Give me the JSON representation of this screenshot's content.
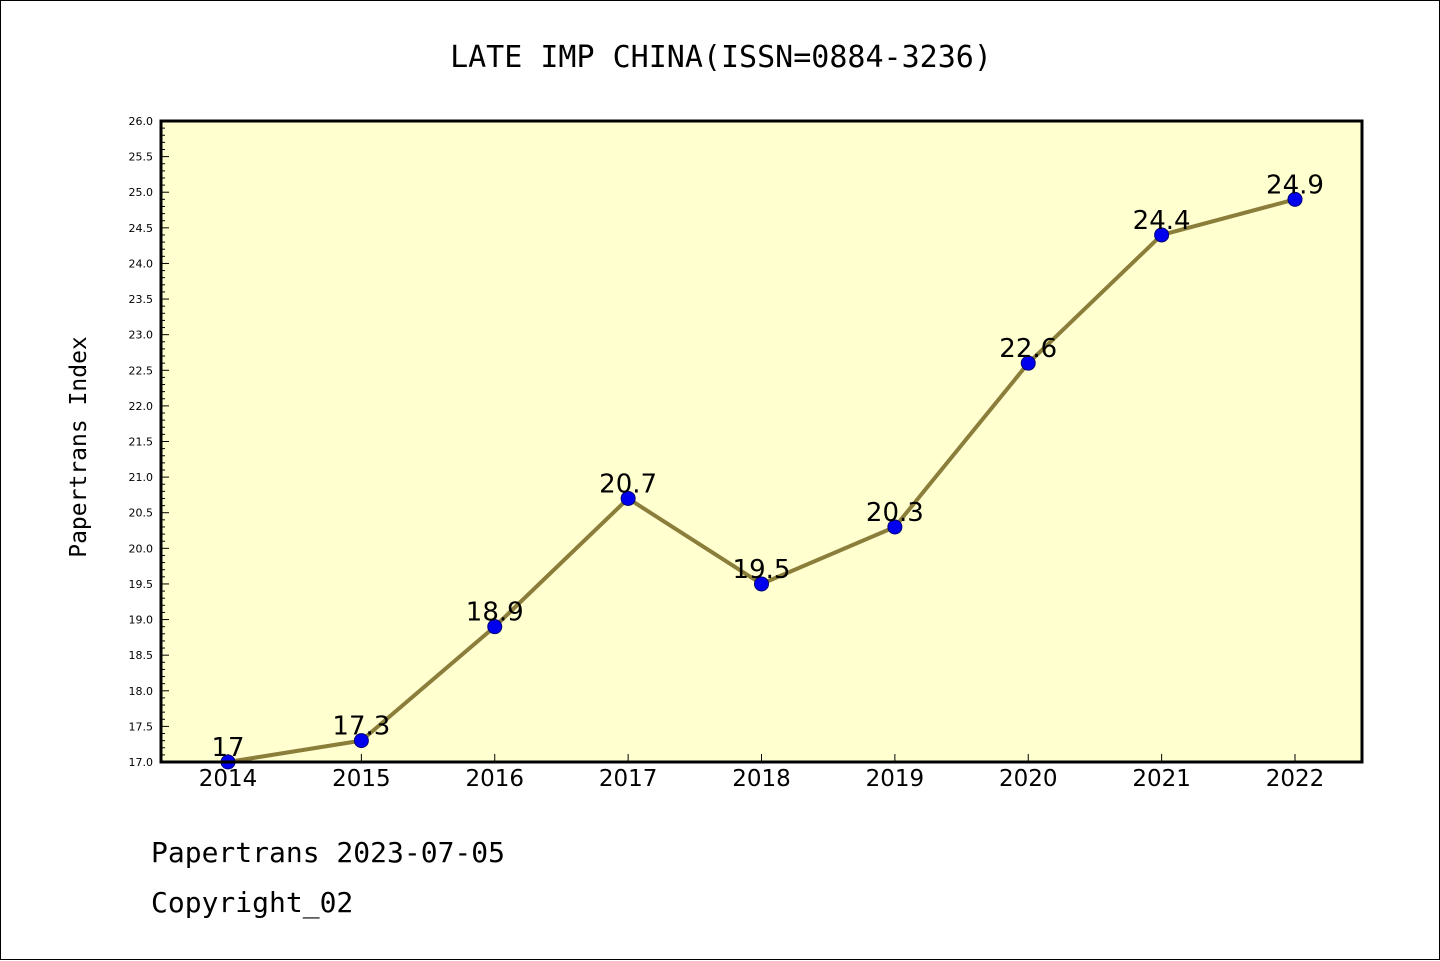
{
  "chart_data": {
    "type": "line",
    "title": "LATE IMP CHINA(ISSN=0884-3236)",
    "xlabel": "",
    "ylabel": "Papertrans Index",
    "x": [
      "2014",
      "2015",
      "2016",
      "2017",
      "2018",
      "2019",
      "2020",
      "2021",
      "2022"
    ],
    "series": [
      {
        "values": [
          17,
          17.3,
          18.9,
          20.7,
          19.5,
          20.3,
          22.6,
          24.4,
          24.9
        ],
        "labels": [
          "17",
          "17.3",
          "18.9",
          "20.7",
          "19.5",
          "20.3",
          "22.6",
          "24.4",
          "24.9"
        ]
      }
    ],
    "ylim": [
      17.0,
      26.0
    ],
    "yticks": [
      "17.0",
      "17.5",
      "18.0",
      "18.5",
      "19.0",
      "19.5",
      "20.0",
      "20.5",
      "21.0",
      "21.5",
      "22.0",
      "22.5",
      "23.0",
      "23.5",
      "24.0",
      "24.5",
      "25.0",
      "25.5",
      "26.0"
    ],
    "grid": false,
    "colors": {
      "plot_background": "#ffffd0",
      "line": "#8b7d3a",
      "marker": "#0000ee",
      "axes": "#000000"
    }
  },
  "footer": {
    "line1": "Papertrans 2023-07-05",
    "line2": "Copyright_02"
  }
}
